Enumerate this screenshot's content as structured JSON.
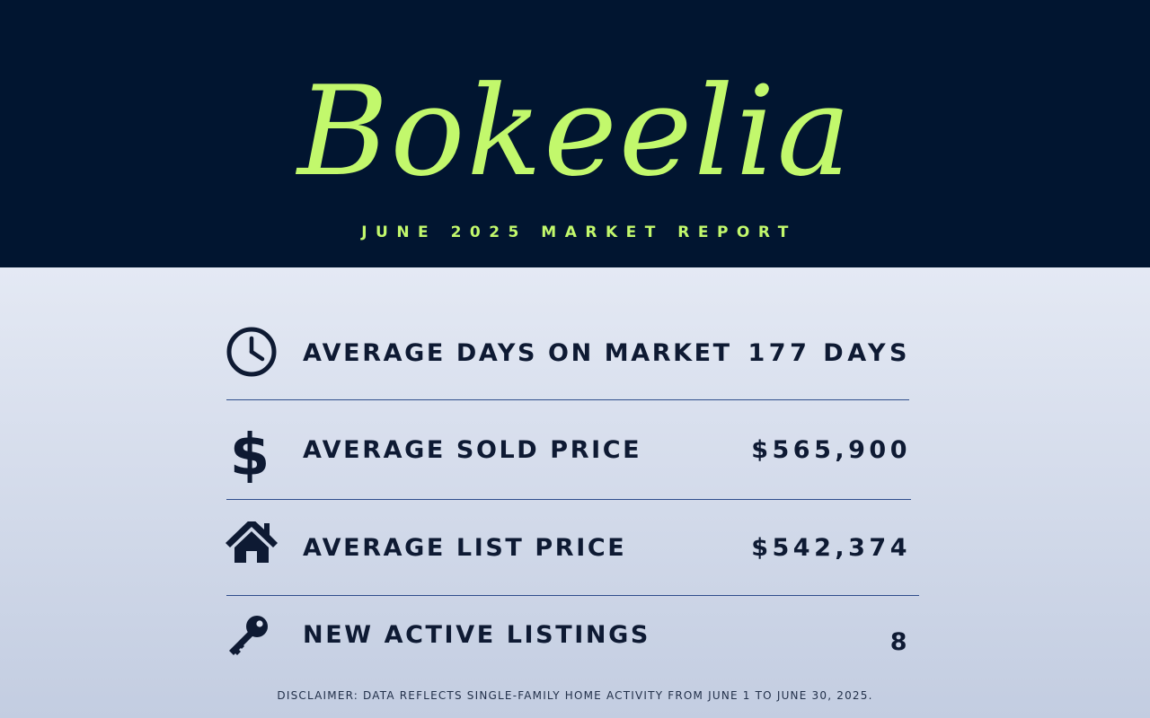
{
  "header": {
    "brand": "Bokeelia",
    "subtitle": "JUNE 2025 MARKET REPORT"
  },
  "colors": {
    "header_bg": "#011530",
    "accent": "#c2f86c",
    "text": "#0e1a33",
    "divider": "#2f4d8c"
  },
  "stats": [
    {
      "icon": "clock-icon",
      "label": "AVERAGE DAYS ON MARKET",
      "value": "177 DAYS"
    },
    {
      "icon": "dollar-icon",
      "label": "AVERAGE SOLD PRICE",
      "value": "$565,900"
    },
    {
      "icon": "house-icon",
      "label": "AVERAGE LIST PRICE",
      "value": "$542,374"
    },
    {
      "icon": "key-icon",
      "label": "NEW ACTIVE LISTINGS",
      "value": "8"
    }
  ],
  "disclaimer": "DISCLAIMER: DATA REFLECTS SINGLE-FAMILY HOME ACTIVITY FROM JUNE 1 TO JUNE 30, 2025."
}
